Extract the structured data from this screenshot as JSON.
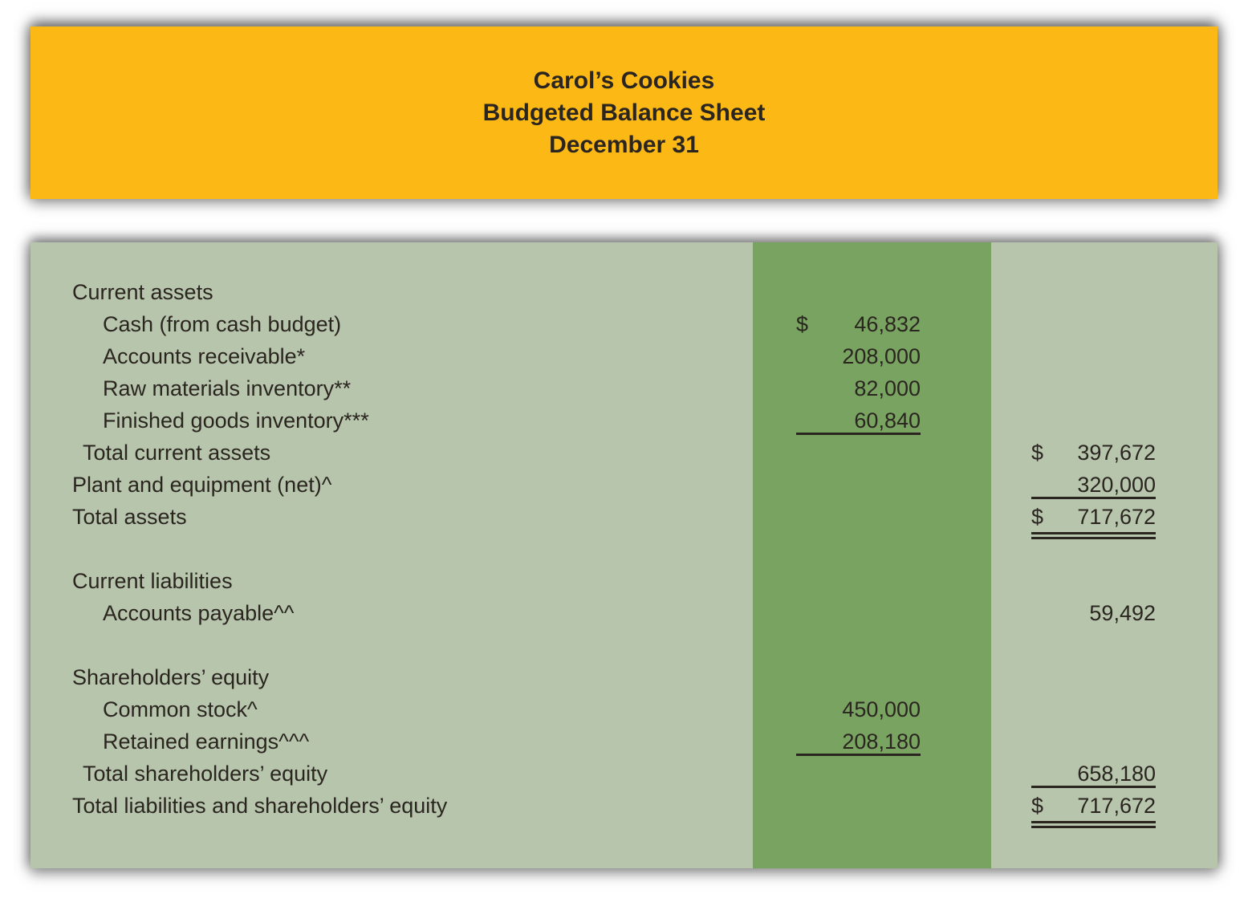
{
  "banner": {
    "title": "Carol’s Cookies",
    "subtitle": "Budgeted Balance Sheet",
    "date": "December 31"
  },
  "colors": {
    "banner_bg": "#fcb815",
    "sheet_bg": "#b6c5ab",
    "stripe_bg": "#78a360",
    "text": "#2b2520"
  },
  "sheet": {
    "rows": [
      {
        "label": "Current assets",
        "indent": 0
      },
      {
        "label": "Cash (from cash budget)",
        "indent": 2,
        "col": "mid",
        "cur": "$",
        "num": "46,832"
      },
      {
        "label": "Accounts receivable*",
        "indent": 2,
        "col": "mid",
        "num": "208,000"
      },
      {
        "label": "Raw materials inventory**",
        "indent": 2,
        "col": "mid",
        "num": "82,000"
      },
      {
        "label": "Finished goods inventory***",
        "indent": 2,
        "col": "mid",
        "num": "60,840",
        "rule": "single"
      },
      {
        "label": "Total current assets",
        "indent": 1,
        "col": "right",
        "cur": "$",
        "num": "397,672"
      },
      {
        "label": "Plant and equipment (net)^",
        "indent": 0,
        "col": "right",
        "num": "320,000",
        "rule": "single"
      },
      {
        "label": "Total assets",
        "indent": 0,
        "col": "right",
        "cur": "$",
        "num": "717,672",
        "rule": "double"
      },
      {
        "spacer": true
      },
      {
        "label": "Current liabilities",
        "indent": 0
      },
      {
        "label": "Accounts payable^^",
        "indent": 2,
        "col": "right",
        "num": "59,492"
      },
      {
        "spacer": true
      },
      {
        "label": "Shareholders’ equity",
        "indent": 0
      },
      {
        "label": "Common stock^",
        "indent": 2,
        "col": "mid",
        "num": "450,000"
      },
      {
        "label": "Retained earnings^^^",
        "indent": 2,
        "col": "mid",
        "num": "208,180",
        "rule": "single"
      },
      {
        "label": "Total shareholders’ equity",
        "indent": 1,
        "col": "right",
        "num": "658,180",
        "rule": "single"
      },
      {
        "label": "Total liabilities and shareholders’ equity",
        "indent": 0,
        "col": "right",
        "cur": "$",
        "num": "717,672",
        "rule": "double"
      }
    ]
  }
}
